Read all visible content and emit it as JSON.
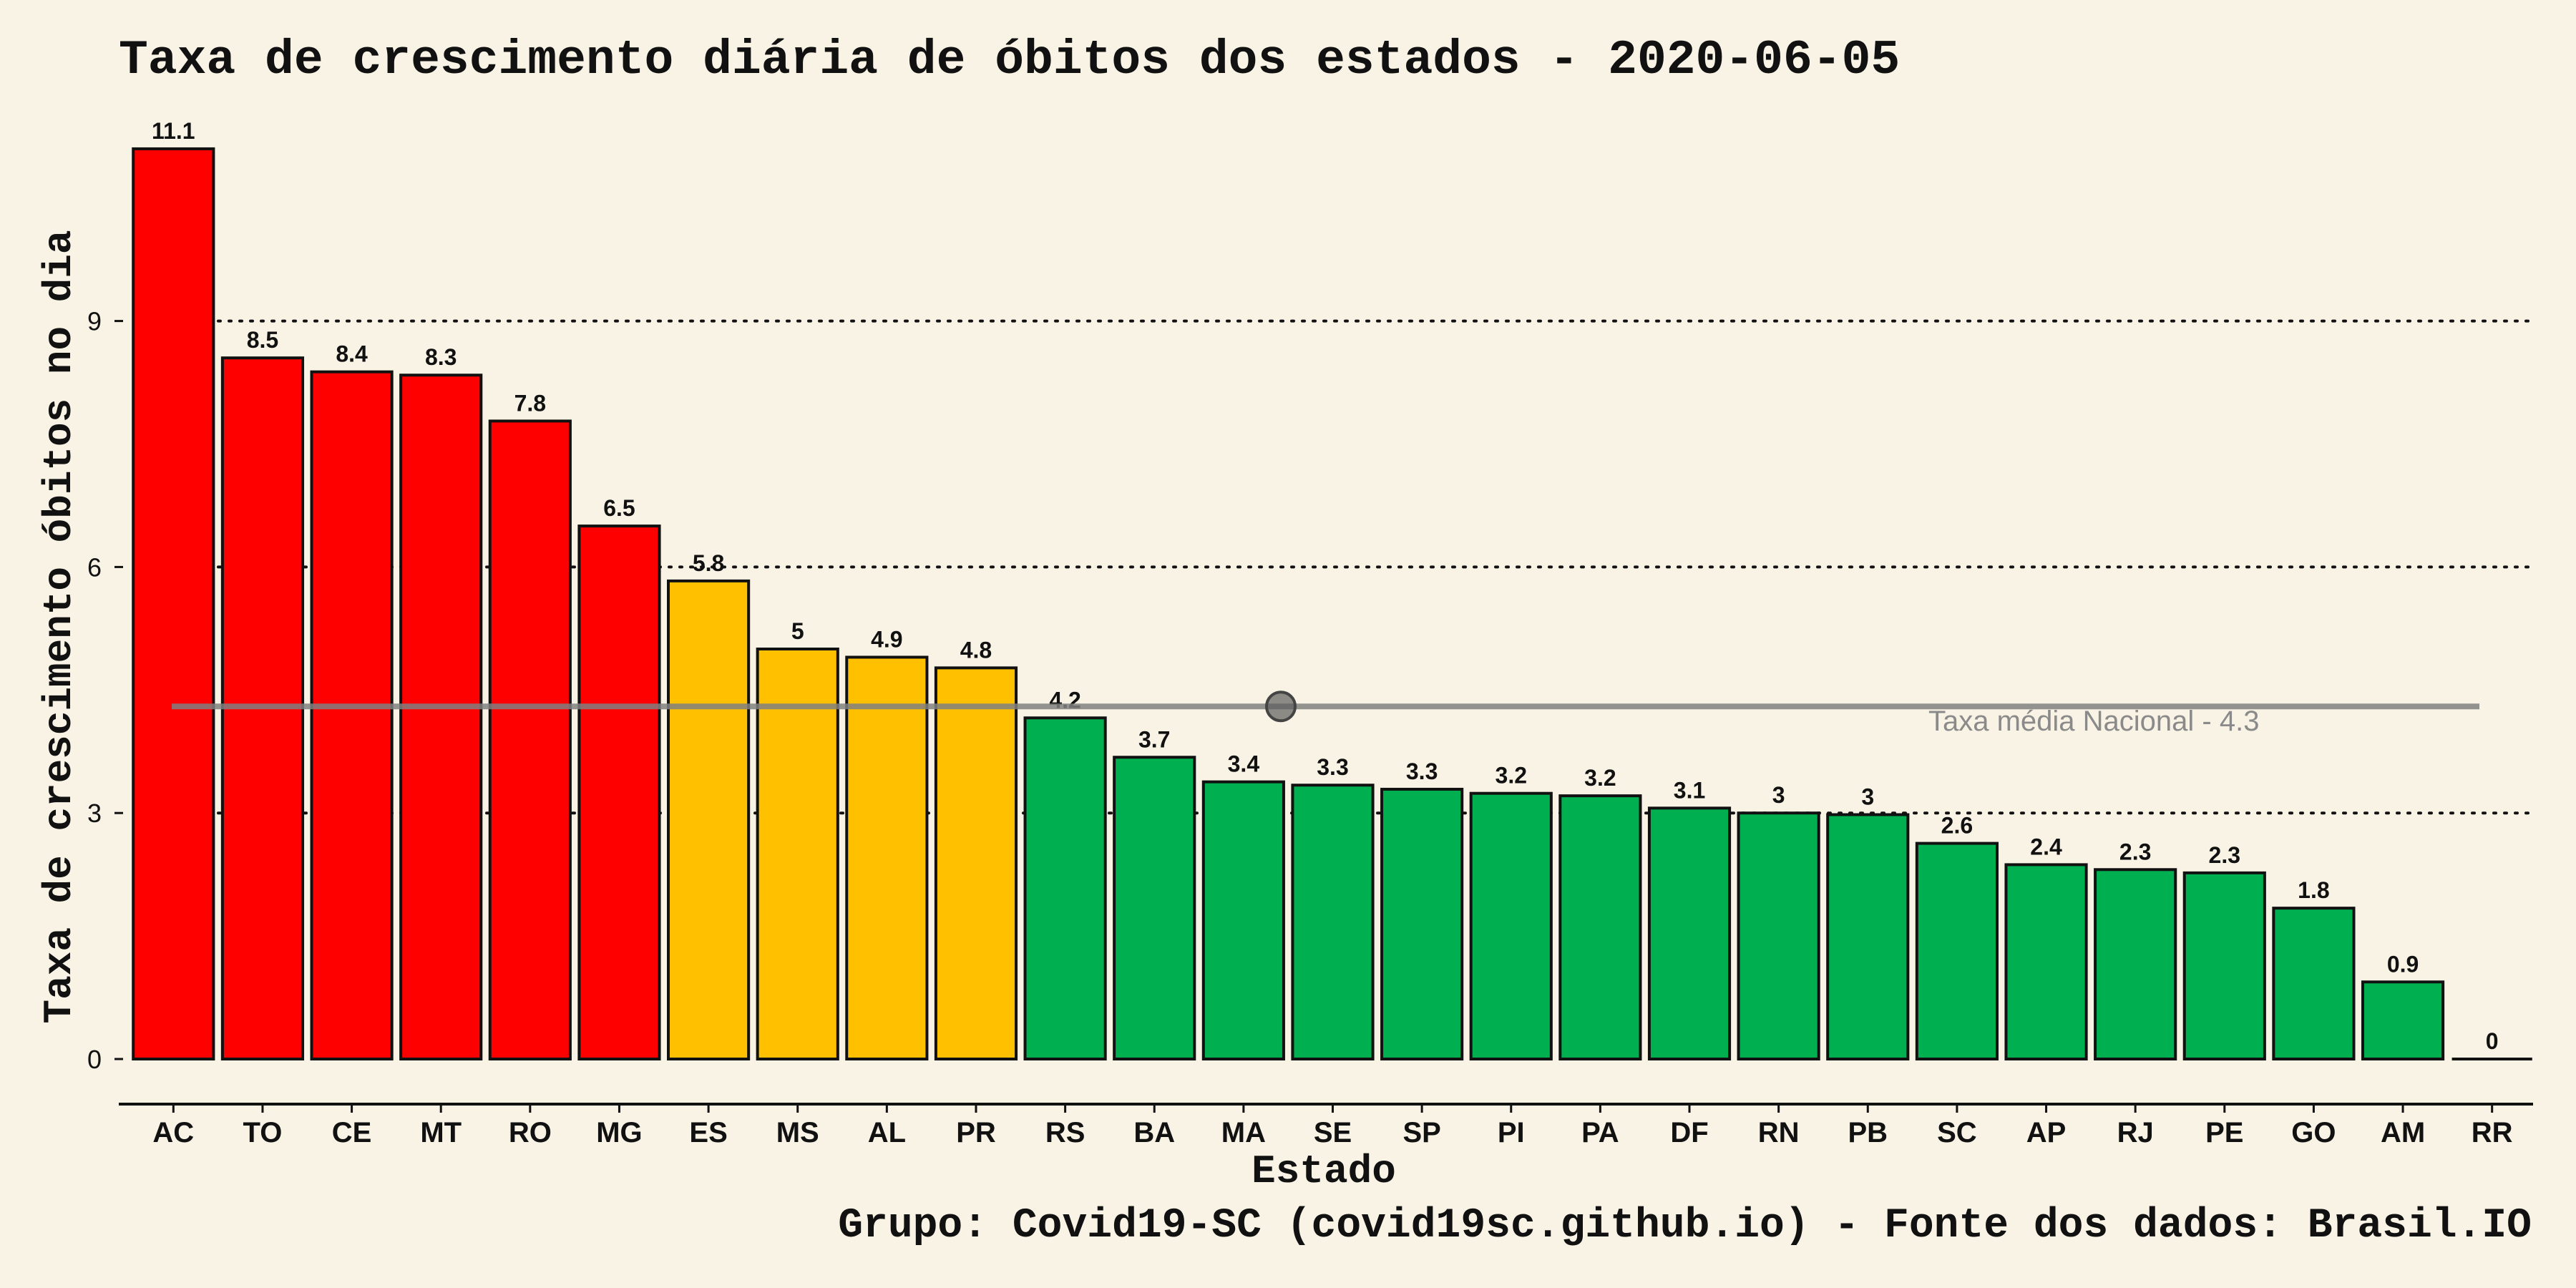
{
  "chart_data": {
    "type": "bar",
    "title": "Taxa de crescimento diária de óbitos dos estados - 2020-06-05",
    "xlabel": "Estado",
    "ylabel": "Taxa de crescimento óbitos no dia",
    "caption": "Grupo: Covid19-SC (covid19sc.github.io)   -  Fonte dos dados: Brasil.IO",
    "categories": [
      "AC",
      "TO",
      "CE",
      "MT",
      "RO",
      "MG",
      "ES",
      "MS",
      "AL",
      "PR",
      "RS",
      "BA",
      "MA",
      "SE",
      "SP",
      "PI",
      "PA",
      "DF",
      "RN",
      "PB",
      "SC",
      "AP",
      "RJ",
      "PE",
      "GO",
      "AM",
      "RR"
    ],
    "values": [
      11.1,
      8.55,
      8.38,
      8.34,
      7.78,
      6.5,
      5.83,
      5.0,
      4.9,
      4.77,
      4.16,
      3.68,
      3.38,
      3.34,
      3.29,
      3.24,
      3.21,
      3.06,
      3.0,
      2.98,
      2.63,
      2.37,
      2.31,
      2.27,
      1.84,
      0.94,
      0.0
    ],
    "value_labels": [
      "11.1",
      "8.5",
      "8.4",
      "8.3",
      "7.8",
      "6.5",
      "5.8",
      "5",
      "4.9",
      "4.8",
      "4.2",
      "3.7",
      "3.4",
      "3.3",
      "3.3",
      "3.2",
      "3.2",
      "3.1",
      "3",
      "3",
      "2.6",
      "2.4",
      "2.3",
      "2.3",
      "1.8",
      "0.9",
      "0"
    ],
    "bar_colors": [
      "#ff0000",
      "#ff0000",
      "#ff0000",
      "#ff0000",
      "#ff0000",
      "#ff0000",
      "#ffc000",
      "#ffc000",
      "#ffc000",
      "#ffc000",
      "#00b050",
      "#00b050",
      "#00b050",
      "#00b050",
      "#00b050",
      "#00b050",
      "#00b050",
      "#00b050",
      "#00b050",
      "#00b050",
      "#00b050",
      "#00b050",
      "#00b050",
      "#00b050",
      "#00b050",
      "#00b050",
      "#00b050"
    ],
    "yticks": [
      0,
      3,
      6,
      9
    ],
    "ylim": [
      0,
      11.1
    ],
    "grid": "horizontal-dotted",
    "reference_line": {
      "value": 4.3,
      "label": "Taxa média Nacional -  4.3",
      "color": "#808080"
    }
  }
}
